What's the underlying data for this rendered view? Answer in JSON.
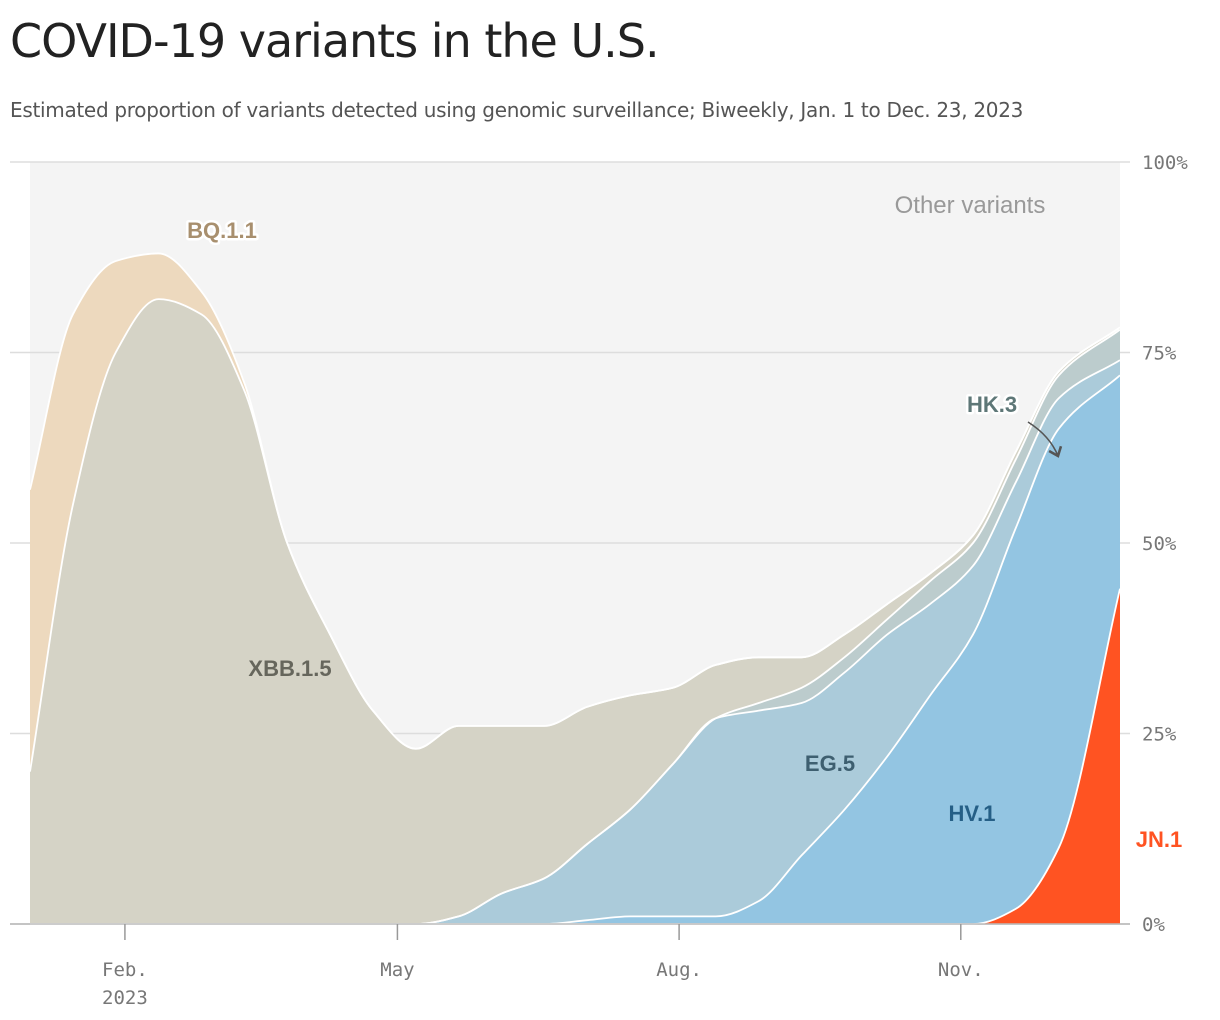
{
  "title": "COVID-19 variants in the U.S.",
  "subtitle": "Estimated proportion of variants detected using genomic surveillance; Biweekly, Jan. 1 to Dec. 23, 2023",
  "colors": {
    "other": "#f4f4f4",
    "bq": "#edd9be",
    "xbb": "#d5d3c6",
    "hk3": "#bccccd",
    "eg5": "#abcbda",
    "hv1": "#93c5e2",
    "jn1": "#ff5322"
  },
  "chart_data": {
    "type": "area",
    "stacked": true,
    "x": [
      "2023-01-01",
      "2023-01-15",
      "2023-01-29",
      "2023-02-12",
      "2023-02-26",
      "2023-03-12",
      "2023-03-26",
      "2023-04-09",
      "2023-04-23",
      "2023-05-07",
      "2023-05-21",
      "2023-06-04",
      "2023-06-18",
      "2023-07-02",
      "2023-07-16",
      "2023-07-30",
      "2023-08-13",
      "2023-08-27",
      "2023-09-10",
      "2023-09-24",
      "2023-10-08",
      "2023-10-22",
      "2023-11-05",
      "2023-11-19",
      "2023-12-03",
      "2023-12-23"
    ],
    "series": [
      {
        "name": "JN.1",
        "values": [
          0,
          0,
          0,
          0,
          0,
          0,
          0,
          0,
          0,
          0,
          0,
          0,
          0,
          0,
          0,
          0,
          0,
          0,
          0,
          0,
          0,
          0,
          0,
          2,
          10,
          44
        ]
      },
      {
        "name": "HV.1",
        "values": [
          0,
          0,
          0,
          0,
          0,
          0,
          0,
          0,
          0,
          0,
          0,
          0,
          0,
          0.5,
          1,
          1,
          1,
          3,
          9,
          15,
          22,
          30,
          38,
          50,
          55,
          28
        ]
      },
      {
        "name": "EG.5",
        "values": [
          0,
          0,
          0,
          0,
          0,
          0,
          0,
          0,
          0,
          0,
          1,
          4,
          6,
          10,
          14,
          20,
          26,
          25,
          20,
          18,
          16,
          12,
          9,
          6,
          4,
          2
        ]
      },
      {
        "name": "HK.3",
        "values": [
          0,
          0,
          0,
          0,
          0,
          0,
          0,
          0,
          0,
          0,
          0,
          0,
          0,
          0,
          0,
          0,
          0,
          1,
          2,
          2,
          2,
          3,
          3,
          3,
          3,
          4
        ]
      },
      {
        "name": "XBB.1.5",
        "values": [
          20,
          55,
          75,
          82,
          80,
          70,
          50,
          38,
          28,
          23,
          25,
          22,
          20,
          18,
          15,
          10,
          7,
          6,
          4,
          3,
          2,
          1,
          1,
          1,
          0.5,
          0.3
        ]
      },
      {
        "name": "BQ.1.1",
        "values": [
          37,
          25,
          12,
          6,
          3,
          1,
          0,
          0,
          0,
          0,
          0,
          0,
          0,
          0,
          0,
          0,
          0,
          0,
          0,
          0,
          0,
          0,
          0,
          0,
          0,
          0
        ]
      },
      {
        "name": "Other variants",
        "values": [
          43,
          20,
          13,
          12,
          17,
          29,
          50,
          62,
          72,
          77,
          74,
          74,
          74,
          71.5,
          70,
          69,
          66,
          65,
          65,
          62,
          58,
          54,
          49,
          38,
          27.5,
          21.7
        ]
      }
    ],
    "xticks": [
      {
        "date": "2023-02-01",
        "label": "Feb.",
        "sublabel": "2023"
      },
      {
        "date": "2023-05-01",
        "label": "May",
        "sublabel": ""
      },
      {
        "date": "2023-08-01",
        "label": "Aug.",
        "sublabel": ""
      },
      {
        "date": "2023-11-01",
        "label": "Nov.",
        "sublabel": ""
      }
    ],
    "yticks": [
      "0%",
      "25%",
      "50%",
      "75%",
      "100%"
    ],
    "ytick_values": [
      0,
      25,
      50,
      75,
      100
    ],
    "ylim": [
      0,
      100
    ],
    "xlabel": "",
    "ylabel": "",
    "grid": true
  }
}
